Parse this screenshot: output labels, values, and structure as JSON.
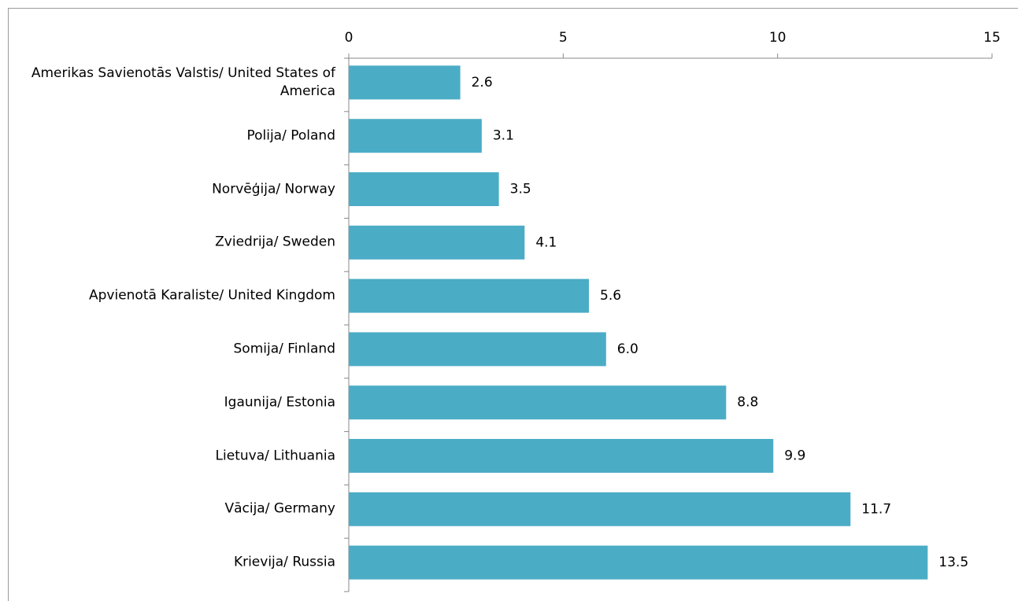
{
  "chart_data": {
    "type": "bar",
    "orientation": "horizontal",
    "categories": [
      "Amerikas Savienotās Valstis/ United States of America",
      "Polija/ Poland",
      "Norvēģija/ Norway",
      "Zviedrija/ Sweden",
      "Apvienotā Karaliste/ United Kingdom",
      "Somija/ Finland",
      "Igaunija/ Estonia",
      "Lietuva/ Lithuania",
      "Vācija/ Germany",
      "Krievija/ Russia"
    ],
    "values": [
      2.6,
      3.1,
      3.5,
      4.1,
      5.6,
      6.0,
      8.8,
      9.9,
      11.7,
      13.5
    ],
    "value_labels": [
      "2.6",
      "3.1",
      "3.5",
      "4.1",
      "5.6",
      "6.0",
      "8.8",
      "9.9",
      "11.7",
      "13.5"
    ],
    "color": "#4bacc6",
    "xlim": [
      0,
      15
    ],
    "xticks": [
      0,
      5,
      10,
      15
    ],
    "grid": false
  }
}
